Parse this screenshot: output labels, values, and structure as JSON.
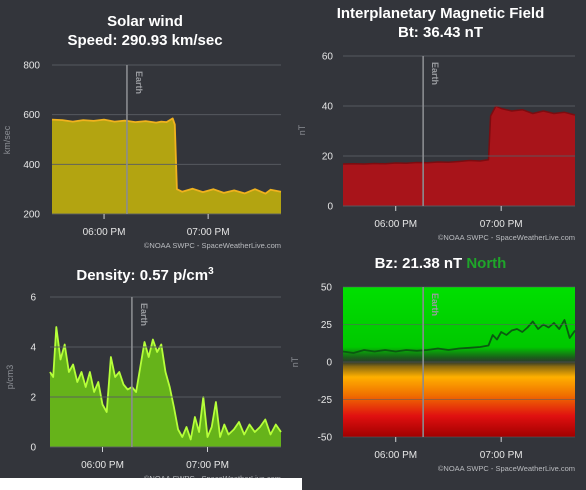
{
  "panels": {
    "solar_wind": {
      "title_line1": "Solar wind",
      "title_line2": "Speed: 290.93 km/sec",
      "ylabel": "km/sec",
      "marker": "Earth",
      "credit": "©NOAA SWPC - SpaceWeatherLive.com"
    },
    "imf": {
      "title_line1": "Interplanetary Magnetic Field",
      "title_line2": "Bt: 36.43 nT",
      "ylabel": "nT",
      "marker": "Earth",
      "credit": "©NOAA SWPC - SpaceWeatherLive.com"
    },
    "density": {
      "title_prefix": "Density: 0.57 p/cm",
      "title_sup": "3",
      "ylabel": "p/cm3",
      "marker": "Earth",
      "credit": "©NOAA SWPC - SpaceWeatherLive.com"
    },
    "bz": {
      "title_prefix": "Bz: 21.38 nT",
      "title_status": "North",
      "ylabel": "nT",
      "marker": "Earth",
      "credit": "©NOAA SWPC - SpaceWeatherLive.com"
    }
  },
  "colors": {
    "background": "#33353b",
    "grid": "#5a5d63",
    "earth_line": "#8a8c90",
    "solar_fill": "#b3a411",
    "solar_line": "#f0b21e",
    "imf_fill": "#a8141a",
    "imf_line": "#7c0c10",
    "density_fill": "#66b31a",
    "density_line": "#b6ff3a",
    "bz_line": "#0a5a10",
    "north": "#1fa52a"
  },
  "chart_data": [
    {
      "id": "solar_wind",
      "type": "area",
      "ylim": [
        200,
        800
      ],
      "yticks": [
        200,
        400,
        600,
        800
      ],
      "xlim": [
        5.5,
        7.7
      ],
      "xticks": [
        {
          "value": 6.0,
          "label": "06:00 PM"
        },
        {
          "value": 7.0,
          "label": "07:00 PM"
        }
      ],
      "earth_x": 6.22,
      "series": [
        {
          "x": [
            5.5,
            5.6,
            5.7,
            5.8,
            5.9,
            6.0,
            6.1,
            6.2,
            6.3,
            6.4,
            6.5,
            6.55,
            6.6,
            6.66,
            6.68,
            6.7,
            6.75,
            6.85,
            6.95,
            7.05,
            7.15,
            7.25,
            7.35,
            7.45,
            7.55,
            7.6,
            7.7
          ],
          "y": [
            580,
            578,
            572,
            578,
            575,
            580,
            572,
            576,
            570,
            574,
            568,
            572,
            570,
            585,
            560,
            300,
            290,
            302,
            288,
            300,
            285,
            295,
            283,
            300,
            282,
            298,
            290
          ]
        }
      ]
    },
    {
      "id": "imf",
      "type": "area",
      "ylim": [
        0,
        60
      ],
      "yticks": [
        0,
        20,
        40,
        60
      ],
      "xlim": [
        5.5,
        7.7
      ],
      "xticks": [
        {
          "value": 6.0,
          "label": "06:00 PM"
        },
        {
          "value": 7.0,
          "label": "07:00 PM"
        }
      ],
      "earth_x": 6.26,
      "series": [
        {
          "x": [
            5.5,
            5.6,
            5.7,
            5.8,
            5.9,
            6.0,
            6.1,
            6.2,
            6.3,
            6.4,
            6.5,
            6.6,
            6.7,
            6.8,
            6.88,
            6.9,
            6.95,
            7.0,
            7.1,
            7.2,
            7.3,
            7.4,
            7.5,
            7.6,
            7.7
          ],
          "y": [
            16.8,
            16.9,
            16.8,
            17.0,
            16.9,
            17.2,
            17.1,
            17.4,
            17.3,
            17.6,
            17.5,
            17.8,
            18.2,
            18.0,
            18.5,
            36.0,
            40.0,
            39.0,
            38.0,
            38.5,
            37.0,
            38.0,
            37.0,
            37.5,
            36.4
          ]
        }
      ]
    },
    {
      "id": "density",
      "type": "area",
      "ylim": [
        0,
        6
      ],
      "yticks": [
        0,
        2,
        4,
        6
      ],
      "xlim": [
        5.5,
        7.7
      ],
      "xticks": [
        {
          "value": 6.0,
          "label": "06:00 PM"
        },
        {
          "value": 7.0,
          "label": "07:00 PM"
        }
      ],
      "earth_x": 6.28,
      "series": [
        {
          "x": [
            5.5,
            5.53,
            5.56,
            5.6,
            5.64,
            5.68,
            5.72,
            5.76,
            5.8,
            5.84,
            5.88,
            5.92,
            5.96,
            6.0,
            6.04,
            6.08,
            6.12,
            6.16,
            6.2,
            6.24,
            6.28,
            6.32,
            6.36,
            6.4,
            6.44,
            6.48,
            6.52,
            6.56,
            6.6,
            6.64,
            6.68,
            6.72,
            6.76,
            6.8,
            6.84,
            6.88,
            6.92,
            6.96,
            7.0,
            7.04,
            7.08,
            7.12,
            7.16,
            7.2,
            7.25,
            7.3,
            7.35,
            7.4,
            7.45,
            7.5,
            7.55,
            7.6,
            7.65,
            7.7
          ],
          "y": [
            3.0,
            2.8,
            4.8,
            3.5,
            4.1,
            3.0,
            3.3,
            2.6,
            3.0,
            2.4,
            3.0,
            2.2,
            2.6,
            1.7,
            1.4,
            3.6,
            2.8,
            3.0,
            2.5,
            2.3,
            2.4,
            2.2,
            3.2,
            4.2,
            3.6,
            4.3,
            3.8,
            4.1,
            3.0,
            2.4,
            1.6,
            0.7,
            0.4,
            0.8,
            0.3,
            1.2,
            0.6,
            2.0,
            0.4,
            0.8,
            1.8,
            0.4,
            0.9,
            0.5,
            0.7,
            1.0,
            0.5,
            0.9,
            0.6,
            0.8,
            1.1,
            0.5,
            0.9,
            0.6
          ]
        }
      ]
    },
    {
      "id": "bz",
      "type": "line",
      "ylim": [
        -50,
        50
      ],
      "yticks": [
        -50,
        -25,
        0,
        25,
        50
      ],
      "xlim": [
        5.5,
        7.7
      ],
      "xticks": [
        {
          "value": 6.0,
          "label": "06:00 PM"
        },
        {
          "value": 7.0,
          "label": "07:00 PM"
        }
      ],
      "earth_x": 6.26,
      "series": [
        {
          "x": [
            5.5,
            5.6,
            5.7,
            5.8,
            5.9,
            6.0,
            6.1,
            6.2,
            6.3,
            6.4,
            6.5,
            6.6,
            6.7,
            6.8,
            6.88,
            6.92,
            6.96,
            7.0,
            7.05,
            7.1,
            7.15,
            7.2,
            7.25,
            7.3,
            7.35,
            7.4,
            7.45,
            7.5,
            7.55,
            7.6,
            7.65,
            7.7
          ],
          "y": [
            7,
            6,
            8,
            7,
            8,
            7,
            8,
            7.5,
            8,
            9,
            8,
            9,
            9.5,
            10,
            11,
            18,
            15,
            20,
            18,
            21,
            22,
            20,
            23,
            27,
            22,
            25,
            23,
            26,
            22,
            28,
            16,
            21
          ]
        }
      ]
    }
  ]
}
